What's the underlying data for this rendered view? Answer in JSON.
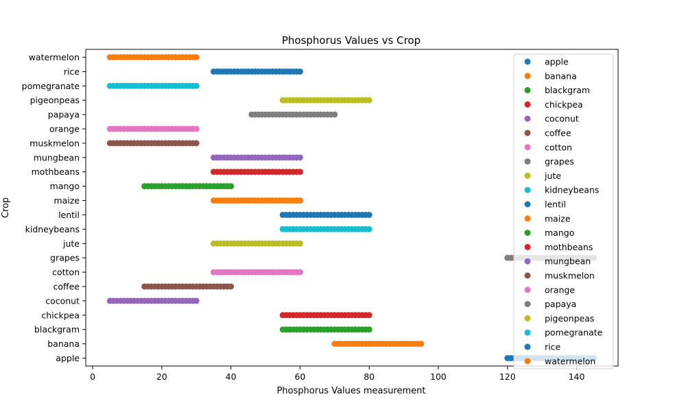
{
  "chart_data": {
    "type": "scatter",
    "title": "Phosphorus Values vs Crop",
    "xlabel": "Phosphorus Values measurement",
    "ylabel": "Crop",
    "xlim": [
      -2,
      152
    ],
    "xticks": [
      0,
      20,
      40,
      60,
      80,
      100,
      120,
      140
    ],
    "xtick_labels": [
      "0",
      "20",
      "40",
      "60",
      "80",
      "100",
      "120",
      "140"
    ],
    "categories": [
      "apple",
      "banana",
      "blackgram",
      "chickpea",
      "coconut",
      "coffee",
      "cotton",
      "grapes",
      "jute",
      "kidneybeans",
      "lentil",
      "maize",
      "mango",
      "mothbeans",
      "mungbean",
      "muskmelon",
      "orange",
      "papaya",
      "pigeonpeas",
      "pomegranate",
      "rice",
      "watermelon"
    ],
    "grid": false,
    "legend_position": "top-right",
    "series": [
      {
        "name": "apple",
        "color": "#1f77b4",
        "min": 120,
        "max": 145
      },
      {
        "name": "banana",
        "color": "#ff7f0e",
        "min": 70,
        "max": 95
      },
      {
        "name": "blackgram",
        "color": "#2ca02c",
        "min": 55,
        "max": 80
      },
      {
        "name": "chickpea",
        "color": "#d62728",
        "min": 55,
        "max": 80
      },
      {
        "name": "coconut",
        "color": "#9467bd",
        "min": 5,
        "max": 30
      },
      {
        "name": "coffee",
        "color": "#8c564b",
        "min": 15,
        "max": 40
      },
      {
        "name": "cotton",
        "color": "#e377c2",
        "min": 35,
        "max": 60
      },
      {
        "name": "grapes",
        "color": "#7f7f7f",
        "min": 120,
        "max": 145
      },
      {
        "name": "jute",
        "color": "#bcbd22",
        "min": 35,
        "max": 60
      },
      {
        "name": "kidneybeans",
        "color": "#17becf",
        "min": 55,
        "max": 80
      },
      {
        "name": "lentil",
        "color": "#1f77b4",
        "min": 55,
        "max": 80
      },
      {
        "name": "maize",
        "color": "#ff7f0e",
        "min": 35,
        "max": 60
      },
      {
        "name": "mango",
        "color": "#2ca02c",
        "min": 15,
        "max": 40
      },
      {
        "name": "mothbeans",
        "color": "#d62728",
        "min": 35,
        "max": 60
      },
      {
        "name": "mungbean",
        "color": "#9467bd",
        "min": 35,
        "max": 60
      },
      {
        "name": "muskmelon",
        "color": "#8c564b",
        "min": 5,
        "max": 30
      },
      {
        "name": "orange",
        "color": "#e377c2",
        "min": 5,
        "max": 30
      },
      {
        "name": "papaya",
        "color": "#7f7f7f",
        "min": 46,
        "max": 70
      },
      {
        "name": "pigeonpeas",
        "color": "#bcbd22",
        "min": 55,
        "max": 80
      },
      {
        "name": "pomegranate",
        "color": "#17becf",
        "min": 5,
        "max": 30
      },
      {
        "name": "rice",
        "color": "#1f77b4",
        "min": 35,
        "max": 60
      },
      {
        "name": "watermelon",
        "color": "#ff7f0e",
        "min": 5,
        "max": 30
      }
    ]
  }
}
